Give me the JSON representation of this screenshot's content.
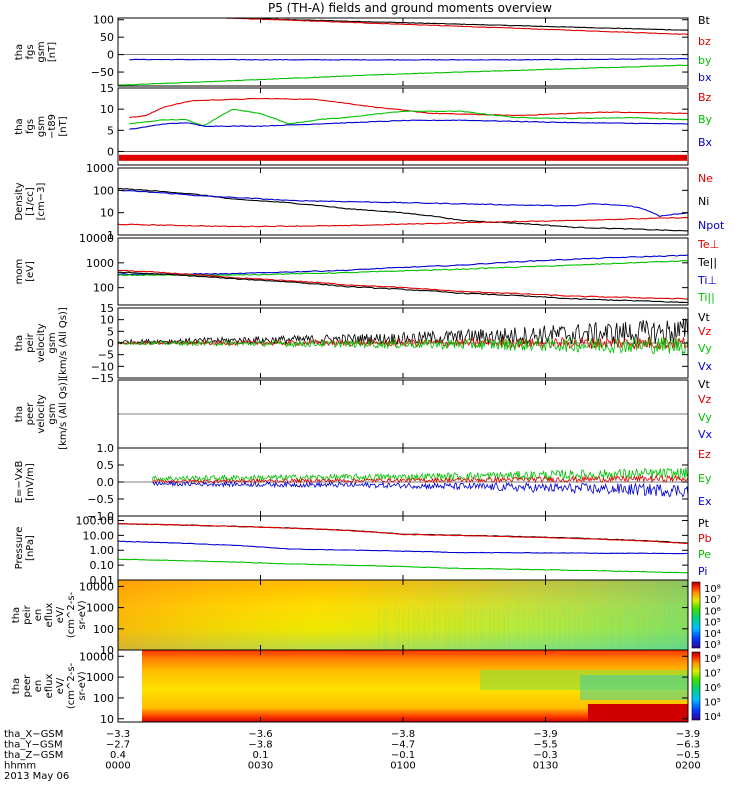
{
  "title": "P5 (TH-A) fields and ground moments overview",
  "colors": {
    "black": "#000000",
    "red": "#e00000",
    "green": "#00c000",
    "blue": "#0000d0"
  },
  "chart_data": [
    {
      "id": "fgs-gsm",
      "type": "line",
      "ylabel": [
        "tha",
        "fgs",
        "gsm",
        "[nT]"
      ],
      "ylim": [
        -90,
        105
      ],
      "ticks": [
        "100",
        "50",
        "0",
        "−50"
      ],
      "legend": [
        {
          "label": "Bt",
          "color": "black"
        },
        {
          "label": "bz",
          "color": "red"
        },
        {
          "label": "by",
          "color": "green"
        },
        {
          "label": "bx",
          "color": "blue"
        }
      ],
      "series": [
        {
          "label": "Bt",
          "x": [
            0.19,
            1
          ],
          "y": [
            105,
            70
          ]
        },
        {
          "label": "bz",
          "x": [
            0.19,
            1
          ],
          "y": [
            105,
            58
          ]
        },
        {
          "label": "bx",
          "x": [
            0.02,
            0.4,
            0.7,
            1
          ],
          "y": [
            -14,
            -15,
            -15,
            -12
          ]
        },
        {
          "label": "by",
          "x": [
            0,
            0.5,
            1
          ],
          "y": [
            -88,
            -55,
            -30
          ]
        }
      ]
    },
    {
      "id": "fgs-gsm-t89",
      "type": "line",
      "ylabel": [
        "tha",
        "fgs",
        "gsm",
        "−t89",
        "[nT]"
      ],
      "ylim": [
        -3.2,
        15
      ],
      "ticks": [
        "15",
        "10",
        "5",
        "0"
      ],
      "legend": [
        {
          "label": "Bz",
          "color": "red"
        },
        {
          "label": "By",
          "color": "green"
        },
        {
          "label": "Bx",
          "color": "blue"
        }
      ],
      "series": [
        {
          "label": "Bz",
          "x": [
            0.02,
            0.05,
            0.08,
            0.13,
            0.25,
            0.35,
            0.45,
            0.55,
            0.7,
            0.85,
            1
          ],
          "y": [
            8,
            8.5,
            10.5,
            12,
            12.5,
            12.3,
            10.5,
            9,
            8.5,
            9.3,
            9
          ]
        },
        {
          "label": "By",
          "x": [
            0.02,
            0.08,
            0.12,
            0.15,
            0.2,
            0.25,
            0.3,
            0.35,
            0.4,
            0.45,
            0.5,
            0.55,
            0.6,
            0.7,
            0.8,
            0.9,
            1
          ],
          "y": [
            6.5,
            7.5,
            7.5,
            6,
            10,
            9,
            6.5,
            7.5,
            8,
            8.8,
            9.5,
            9.5,
            9.5,
            8,
            7.8,
            8,
            7.5
          ]
        },
        {
          "label": "Bx",
          "x": [
            0.02,
            0.08,
            0.12,
            0.15,
            0.25,
            0.35,
            0.5,
            0.6,
            0.8,
            1
          ],
          "y": [
            5.2,
            6.5,
            6.8,
            6,
            6,
            6.5,
            7.3,
            7.4,
            6.8,
            6.5
          ]
        }
      ],
      "band": {
        "color": "red",
        "y": -1.5
      }
    },
    {
      "id": "density",
      "type": "line",
      "yscale": "log",
      "ylabel": [
        "Density",
        "[1/cc]",
        "[cm−3]"
      ],
      "ylim": [
        1,
        1000
      ],
      "ticks": [
        "1000",
        "100",
        "10",
        "1"
      ],
      "legend": [
        {
          "label": "Ne",
          "color": "red"
        },
        {
          "label": "Ni",
          "color": "black"
        },
        {
          "label": "Npot",
          "color": "blue"
        }
      ],
      "series": [
        {
          "label": "Ni",
          "x": [
            0,
            0.2,
            0.4,
            0.6,
            0.8,
            1
          ],
          "y": [
            120,
            40,
            15,
            4.5,
            2.2,
            1.5
          ]
        },
        {
          "label": "Ne",
          "x": [
            0,
            0.2,
            0.4,
            0.6,
            0.8,
            1
          ],
          "y": [
            3,
            2.4,
            2.6,
            3.5,
            4.5,
            6
          ]
        },
        {
          "label": "Npot",
          "x": [
            0,
            0.15,
            0.3,
            0.5,
            0.7,
            0.8,
            0.83,
            0.9,
            0.95,
            1
          ],
          "y": [
            100,
            55,
            35,
            28,
            22,
            20,
            25,
            20,
            7,
            10
          ]
        }
      ]
    },
    {
      "id": "mom-temp",
      "type": "line",
      "yscale": "log",
      "ylabel": [
        "mom",
        "[eV]"
      ],
      "ylim": [
        20,
        10000
      ],
      "ticks": [
        "10000",
        "1000",
        "100"
      ],
      "legend": [
        {
          "label": "Te⊥",
          "color": "red"
        },
        {
          "label": "Te||",
          "color": "black"
        },
        {
          "label": "Ti⊥",
          "color": "blue"
        },
        {
          "label": "Ti||",
          "color": "green"
        }
      ],
      "series": [
        {
          "label": "Ti⊥",
          "x": [
            0,
            0.2,
            0.4,
            0.6,
            0.8,
            1
          ],
          "y": [
            350,
            360,
            500,
            800,
            1400,
            2000
          ]
        },
        {
          "label": "Ti||",
          "x": [
            0,
            0.2,
            0.4,
            0.6,
            0.8,
            1
          ],
          "y": [
            320,
            320,
            400,
            550,
            800,
            1200
          ]
        },
        {
          "label": "Te⊥",
          "x": [
            0,
            0.2,
            0.4,
            0.6,
            0.8,
            1
          ],
          "y": [
            500,
            250,
            130,
            70,
            45,
            35
          ]
        },
        {
          "label": "Te||",
          "x": [
            0,
            0.2,
            0.4,
            0.6,
            0.8,
            1
          ],
          "y": [
            420,
            230,
            110,
            60,
            35,
            25
          ]
        }
      ]
    },
    {
      "id": "peir-velocity",
      "type": "line",
      "ylabel": [
        "tha",
        "peir",
        "velocity",
        "gsm",
        "[km/s (All Qs)]"
      ],
      "ylim": [
        -15,
        15
      ],
      "ticks": [
        "15",
        "10",
        "5",
        "0",
        "−5",
        "−10",
        "−15"
      ],
      "legend": [
        {
          "label": "Vt",
          "color": "black"
        },
        {
          "label": "Vz",
          "color": "red"
        },
        {
          "label": "Vy",
          "color": "green"
        },
        {
          "label": "Vx",
          "color": "blue"
        }
      ],
      "series": [
        {
          "label": "Vt",
          "x": [
            0,
            0.5,
            1
          ],
          "y": [
            0.5,
            2,
            5
          ],
          "noise": [
            0.8,
            2.5,
            6
          ]
        },
        {
          "label": "Vz",
          "x": [
            0,
            0.5,
            1
          ],
          "y": [
            0,
            0,
            0
          ],
          "noise": [
            0.6,
            1.5,
            3
          ]
        },
        {
          "label": "Vy",
          "x": [
            0,
            0.5,
            1
          ],
          "y": [
            0,
            -0.5,
            -1
          ],
          "noise": [
            0.6,
            1.8,
            4
          ]
        }
      ]
    },
    {
      "id": "peer-velocity",
      "type": "line",
      "ylabel": [
        "tha",
        "peer",
        "velocity",
        "gsm",
        "[km/s (All Qs)]"
      ],
      "ylim": [
        -15,
        15
      ],
      "ticks": [],
      "legend": [
        {
          "label": "Vt",
          "color": "black"
        },
        {
          "label": "Vz",
          "color": "red"
        },
        {
          "label": "Vy",
          "color": "green"
        },
        {
          "label": "Vx",
          "color": "blue"
        }
      ],
      "series": []
    },
    {
      "id": "e-field",
      "type": "line",
      "ylabel": [
        "E=−VxB",
        "[mV/m]"
      ],
      "ylim": [
        -1.0,
        1.0
      ],
      "ticks": [
        "1.0",
        "0.5",
        "0.0",
        "−0.5",
        "−1.0"
      ],
      "legend": [
        {
          "label": "Ez",
          "color": "red"
        },
        {
          "label": "Ey",
          "color": "green"
        },
        {
          "label": "Ex",
          "color": "blue"
        }
      ],
      "series": [
        {
          "label": "Ey",
          "x": [
            0.06,
            0.5,
            1
          ],
          "y": [
            0.1,
            0.15,
            0.25
          ],
          "noise": [
            0.08,
            0.1,
            0.18
          ]
        },
        {
          "label": "Ez",
          "x": [
            0.06,
            0.5,
            1
          ],
          "y": [
            0.02,
            0.05,
            0.1
          ],
          "noise": [
            0.05,
            0.06,
            0.1
          ]
        },
        {
          "label": "Ex",
          "x": [
            0.06,
            0.5,
            1
          ],
          "y": [
            -0.05,
            -0.1,
            -0.25
          ],
          "noise": [
            0.06,
            0.08,
            0.2
          ]
        }
      ]
    },
    {
      "id": "pressure",
      "type": "line",
      "yscale": "log",
      "ylabel": [
        "Pressure",
        "[nPa]"
      ],
      "ylim": [
        0.01,
        200
      ],
      "ticks": [
        "100.00",
        "10.00",
        "1.00",
        "0.10",
        "0.01"
      ],
      "legend": [
        {
          "label": "Pt",
          "color": "black"
        },
        {
          "label": "Pb",
          "color": "red"
        },
        {
          "label": "Pe",
          "color": "green"
        },
        {
          "label": "Pi",
          "color": "blue"
        }
      ],
      "series": [
        {
          "label": "Pt",
          "x": [
            0,
            0.5,
            1
          ],
          "y": [
            60,
            12,
            3
          ]
        },
        {
          "label": "Pb",
          "x": [
            0,
            0.5,
            1
          ],
          "y": [
            60,
            11.5,
            2.8
          ]
        },
        {
          "label": "Pi",
          "x": [
            0,
            0.3,
            0.6,
            1
          ],
          "y": [
            4,
            1.2,
            0.7,
            0.6
          ]
        },
        {
          "label": "Pe",
          "x": [
            0,
            0.3,
            0.6,
            1
          ],
          "y": [
            0.25,
            0.12,
            0.06,
            0.03
          ]
        }
      ]
    },
    {
      "id": "peir-eflux",
      "type": "heatmap",
      "yscale": "log",
      "ylabel": [
        "tha",
        "peir",
        "en",
        "eflux",
        "eV/",
        "(cm^2-s-",
        "sr-eV)"
      ],
      "ylim": [
        10,
        20000
      ],
      "ticks": [
        "10000",
        "1000",
        "100",
        "10"
      ],
      "colorbar": {
        "labels": [
          "10⁸",
          "10⁷",
          "10⁶",
          "10⁵",
          "10⁴",
          "10³"
        ]
      }
    },
    {
      "id": "peer-eflux",
      "type": "heatmap",
      "yscale": "log",
      "ylabel": [
        "tha",
        "peer",
        "en",
        "eflux",
        "eV/",
        "(cm^2-s-",
        "sr-eV)"
      ],
      "ylim": [
        7,
        20000
      ],
      "ticks": [
        "10000",
        "1000",
        "100",
        "10"
      ],
      "colorbar": {
        "labels": [
          "10⁸",
          "10⁷",
          "10⁶",
          "10⁵",
          "10⁴"
        ]
      }
    }
  ],
  "time_axis": {
    "rows": [
      {
        "label": "tha_X−GSM",
        "values": [
          "−3.3",
          "−3.6",
          "−3.8",
          "−3.9",
          "−3.9"
        ]
      },
      {
        "label": "tha_Y−GSM",
        "values": [
          "−2.7",
          "−3.8",
          "−4.7",
          "−5.5",
          "−6.3"
        ]
      },
      {
        "label": "tha_Z−GSM",
        "values": [
          "0.4",
          "0.1",
          "−0.1",
          "−0.3",
          "−0.5"
        ]
      },
      {
        "label": "hhmm",
        "values": [
          "0000",
          "0030",
          "0100",
          "0130",
          "0200"
        ]
      }
    ],
    "date": "2013 May 06"
  }
}
